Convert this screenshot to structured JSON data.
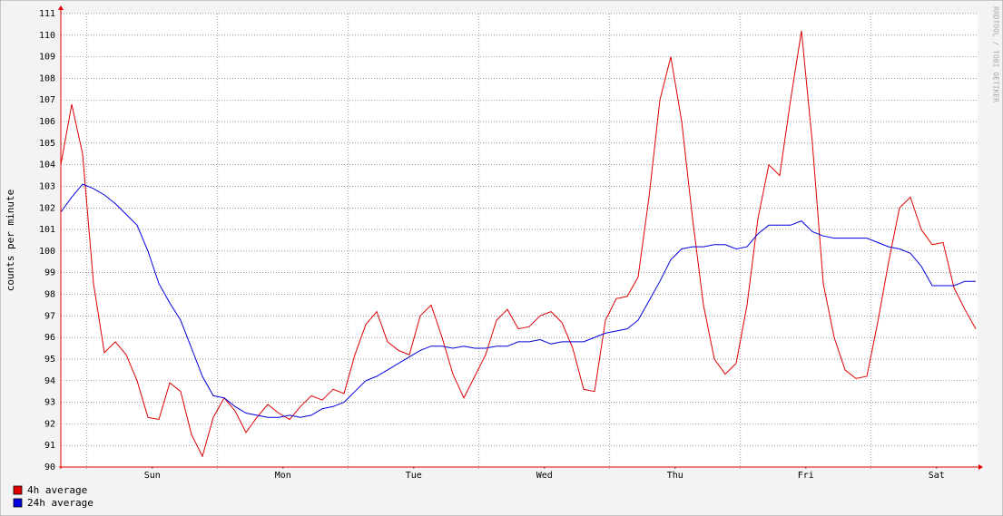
{
  "chart_data": {
    "type": "line",
    "y_label": "counts per minute",
    "watermark": "RRDTOOL / TOBI OETIKER",
    "x": [
      0,
      2,
      4,
      6,
      8,
      10,
      12,
      14,
      16,
      18,
      20,
      22,
      24,
      26,
      28,
      30,
      32,
      34,
      36,
      38,
      40,
      42,
      44,
      46,
      48,
      50,
      52,
      54,
      56,
      58,
      60,
      62,
      64,
      66,
      68,
      70,
      72,
      74,
      76,
      78,
      80,
      82,
      84,
      86,
      88,
      90,
      92,
      94,
      96,
      98,
      100,
      102,
      104,
      106,
      108,
      110,
      112,
      114,
      116,
      118,
      120,
      122,
      124,
      126,
      128,
      130,
      132,
      134,
      136,
      138,
      140,
      142,
      144,
      146,
      148,
      150,
      152,
      154,
      156,
      158,
      160,
      162,
      164,
      166,
      168
    ],
    "series": [
      {
        "name": "4h average",
        "color": "#e00000",
        "values": [
          104,
          106.8,
          104.5,
          98.5,
          95.3,
          95.8,
          95.2,
          94,
          92.3,
          92.2,
          93.9,
          93.5,
          91.5,
          90.5,
          92.3,
          93.2,
          92.6,
          91.6,
          92.3,
          92.9,
          92.5,
          92.2,
          92.8,
          93.3,
          93.1,
          93.6,
          93.4,
          95.2,
          96.6,
          97.2,
          95.8,
          95.4,
          95.2,
          97,
          97.5,
          96,
          94.3,
          93.2,
          94.2,
          95.2,
          96.8,
          97.3,
          96.4,
          96.5,
          97,
          97.2,
          96.7,
          95.5,
          93.6,
          93.5,
          96.8,
          97.8,
          97.9,
          98.8,
          102.5,
          107,
          109,
          106,
          101.5,
          97.5,
          95,
          94.3,
          94.8,
          97.5,
          101.5,
          104,
          103.5,
          107,
          110.2,
          105,
          98.5,
          96,
          94.5,
          94.1,
          94.2,
          96.7,
          99.5,
          102,
          102.5,
          101,
          100.3,
          100.4,
          98.3,
          97.3,
          96.4
        ]
      },
      {
        "name": "24h average",
        "color": "#0000e0",
        "values": [
          101.8,
          102.5,
          103.1,
          102.9,
          102.6,
          102.2,
          101.7,
          101.2,
          100,
          98.5,
          97.6,
          96.8,
          95.5,
          94.2,
          93.3,
          93.2,
          92.8,
          92.5,
          92.4,
          92.3,
          92.3,
          92.4,
          92.3,
          92.4,
          92.7,
          92.8,
          93,
          93.5,
          94,
          94.2,
          94.5,
          94.8,
          95.1,
          95.4,
          95.6,
          95.6,
          95.5,
          95.6,
          95.5,
          95.5,
          95.6,
          95.6,
          95.8,
          95.8,
          95.9,
          95.7,
          95.8,
          95.8,
          95.8,
          96,
          96.2,
          96.3,
          96.4,
          96.8,
          97.7,
          98.6,
          99.6,
          100.1,
          100.2,
          100.2,
          100.3,
          100.3,
          100.1,
          100.2,
          100.8,
          101.2,
          101.2,
          101.2,
          101.4,
          100.9,
          100.7,
          100.6,
          100.6,
          100.6,
          100.6,
          100.4,
          100.2,
          100.1,
          99.9,
          99.3,
          98.4,
          98.4,
          98.4,
          98.6,
          98.6
        ]
      }
    ],
    "xlim": [
      0,
      168
    ],
    "xticks": [
      {
        "value": 16.8,
        "label": "Sun"
      },
      {
        "value": 40.8,
        "label": "Mon"
      },
      {
        "value": 64.8,
        "label": "Tue"
      },
      {
        "value": 88.8,
        "label": "Wed"
      },
      {
        "value": 112.8,
        "label": "Thu"
      },
      {
        "value": 136.8,
        "label": "Fri"
      },
      {
        "value": 160.8,
        "label": "Sat"
      }
    ],
    "xgrid": [
      4.8,
      28.8,
      52.8,
      76.8,
      100.8,
      124.8,
      148.8
    ],
    "ylim": [
      90,
      111
    ],
    "yticks": [
      90,
      91,
      92,
      93,
      94,
      95,
      96,
      97,
      98,
      99,
      100,
      101,
      102,
      103,
      104,
      105,
      106,
      107,
      108,
      109,
      110,
      111
    ],
    "grid": true,
    "legend": "bottom-left"
  }
}
